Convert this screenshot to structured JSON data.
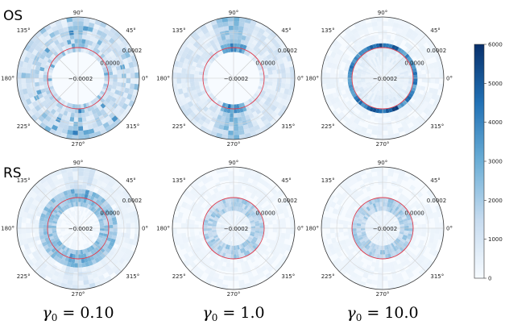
{
  "chart_data": {
    "type": "heatmap",
    "row_labels": [
      "OS",
      "RS"
    ],
    "col_labels": [
      {
        "symbol": "γ",
        "sub": "0",
        "rest": " = 0.10"
      },
      {
        "symbol": "γ",
        "sub": "0",
        "rest": " = 1.0"
      },
      {
        "symbol": "γ",
        "sub": "0",
        "rest": " = 10.0"
      }
    ],
    "angle_ticks": [
      "90°",
      "45°",
      "0°",
      "315°",
      "270°",
      "225°",
      "180°",
      "135°"
    ],
    "radial_ticks": [
      "0.0002",
      "0.0000",
      "−0.0002"
    ],
    "rlim": [
      -0.0002,
      0.0002
    ],
    "colorbar": {
      "range": [
        0,
        6000
      ],
      "ticks": [
        "6000",
        "5000",
        "4000",
        "3000",
        "2000",
        "1000",
        "0"
      ]
    },
    "ring_color": "#e03a4c",
    "colormap": "Blues"
  }
}
